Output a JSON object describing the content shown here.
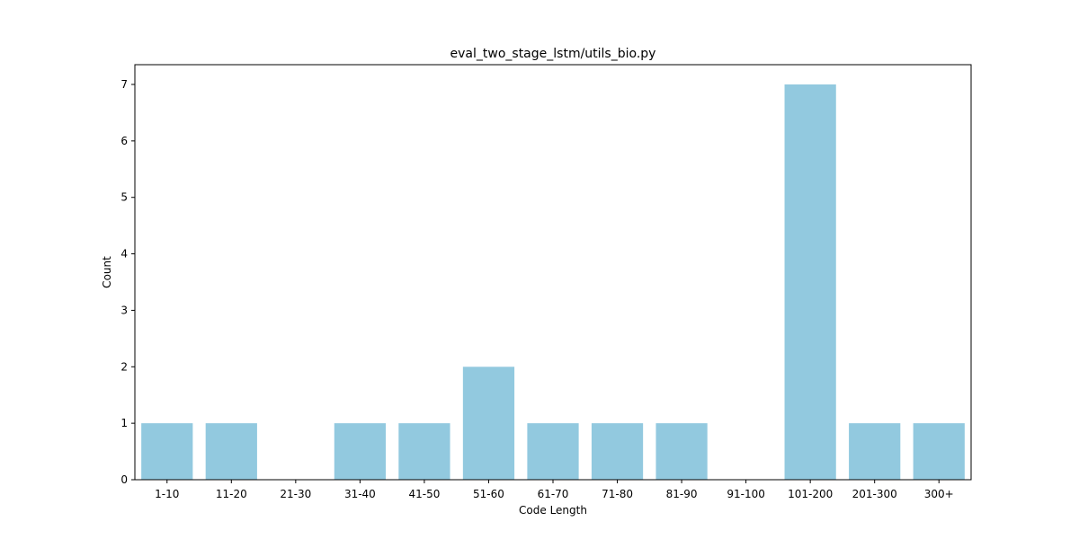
{
  "chart_data": {
    "type": "bar",
    "title": "eval_two_stage_lstm/utils_bio.py",
    "xlabel": "Code Length",
    "ylabel": "Count",
    "categories": [
      "1-10",
      "11-20",
      "21-30",
      "31-40",
      "41-50",
      "51-60",
      "61-70",
      "71-80",
      "81-90",
      "91-100",
      "101-200",
      "201-300",
      "300+"
    ],
    "values": [
      1,
      1,
      0,
      1,
      1,
      2,
      1,
      1,
      1,
      0,
      7,
      1,
      1
    ],
    "ylim": [
      0,
      7.35
    ],
    "yticks": [
      0,
      1,
      2,
      3,
      4,
      5,
      6,
      7
    ],
    "grid": false,
    "bar_color": "#92c9df"
  }
}
